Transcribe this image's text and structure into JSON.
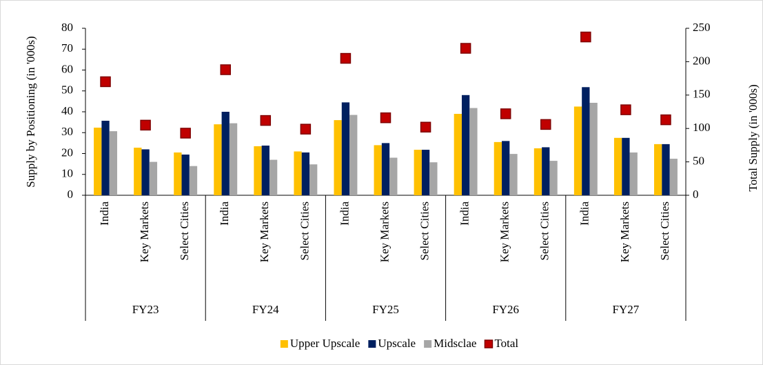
{
  "chart_data": {
    "type": "bar",
    "y_label": "Supply by Positioning (in '000s)",
    "y2_label": "Total Supply (in '000s)",
    "groups": [
      "FY23",
      "FY24",
      "FY25",
      "FY26",
      "FY27"
    ],
    "categories": [
      "India",
      "Key Markets",
      "Select Cities",
      "India",
      "Key Markets",
      "Select Cities",
      "India",
      "Key Markets",
      "Select Cities",
      "India",
      "Key Markets",
      "Select Cities",
      "India",
      "Key Markets",
      "Select Cities"
    ],
    "series": [
      {
        "name": "Upper Upscale",
        "color": "#ffc000",
        "values": [
          32.4,
          22.8,
          20.5,
          34,
          23.5,
          21,
          36,
          24,
          21.8,
          39,
          25.5,
          22.5,
          42.5,
          27.5,
          24.5
        ]
      },
      {
        "name": "Upscale",
        "color": "#002060",
        "values": [
          35.7,
          22,
          19.5,
          40,
          23.8,
          20.5,
          44.5,
          25,
          21.8,
          48,
          26,
          23,
          51.8,
          27.5,
          24.5
        ]
      },
      {
        "name": "Midsclae",
        "color": "#a6a6a6",
        "values": [
          30.7,
          16,
          14,
          34.5,
          17,
          14.8,
          38.5,
          18,
          15.8,
          41.8,
          19.8,
          16.5,
          44.3,
          20.5,
          17.5
        ]
      },
      {
        "name": "Total",
        "color": "#c00000",
        "type": "scatter",
        "axis": "y2",
        "values": [
          170,
          105,
          93,
          188,
          112,
          99,
          205,
          116,
          102,
          220,
          122,
          106,
          237,
          128,
          113
        ]
      }
    ],
    "ylim": [
      0,
      80
    ],
    "yticks": [
      0,
      10,
      20,
      30,
      40,
      50,
      60,
      70,
      80
    ],
    "y2lim": [
      0,
      250
    ],
    "y2ticks": [
      0,
      50,
      100,
      150,
      200,
      250
    ],
    "legend": "bottom"
  }
}
